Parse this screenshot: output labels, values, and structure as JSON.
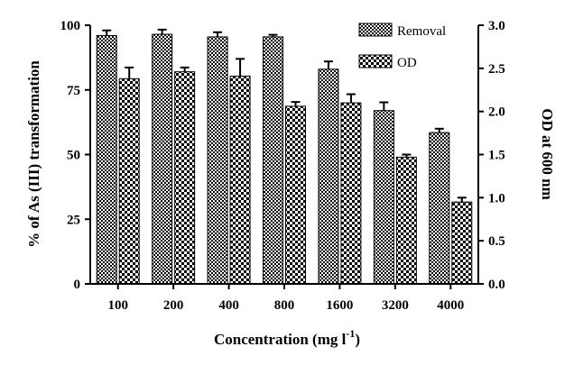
{
  "chart_data": {
    "type": "bar",
    "categories": [
      "100",
      "200",
      "400",
      "800",
      "1600",
      "3200",
      "4000"
    ],
    "series": [
      {
        "name": "Removal",
        "axis": "left",
        "pattern": "dense-checker",
        "values": [
          96,
          96.5,
          95.5,
          95.5,
          83,
          67,
          58.5
        ],
        "errors": [
          2,
          1.8,
          1.8,
          0.8,
          3,
          3.2,
          1.5
        ]
      },
      {
        "name": "OD",
        "axis": "right",
        "pattern": "coarse-checker",
        "values": [
          2.38,
          2.46,
          2.41,
          2.06,
          2.1,
          1.47,
          0.95
        ],
        "errors": [
          0.13,
          0.05,
          0.2,
          0.05,
          0.1,
          0.03,
          0.05
        ]
      }
    ],
    "y_left": {
      "label": "% of As (III) transformation",
      "lim": [
        0,
        100
      ],
      "ticks": [
        "0",
        "25",
        "50",
        "75",
        "100"
      ]
    },
    "y_right": {
      "label": "OD at 600 nm",
      "lim": [
        0,
        3
      ],
      "ticks": [
        "0.0",
        "0.5",
        "1.0",
        "1.5",
        "2.0",
        "2.5",
        "3.0"
      ]
    },
    "x_label": {
      "main": "Concentration (mg l",
      "superscript": "-1",
      "close": ")"
    },
    "legend_position": "top-right",
    "colors": {
      "ink": "#000000",
      "background": "#ffffff"
    }
  }
}
